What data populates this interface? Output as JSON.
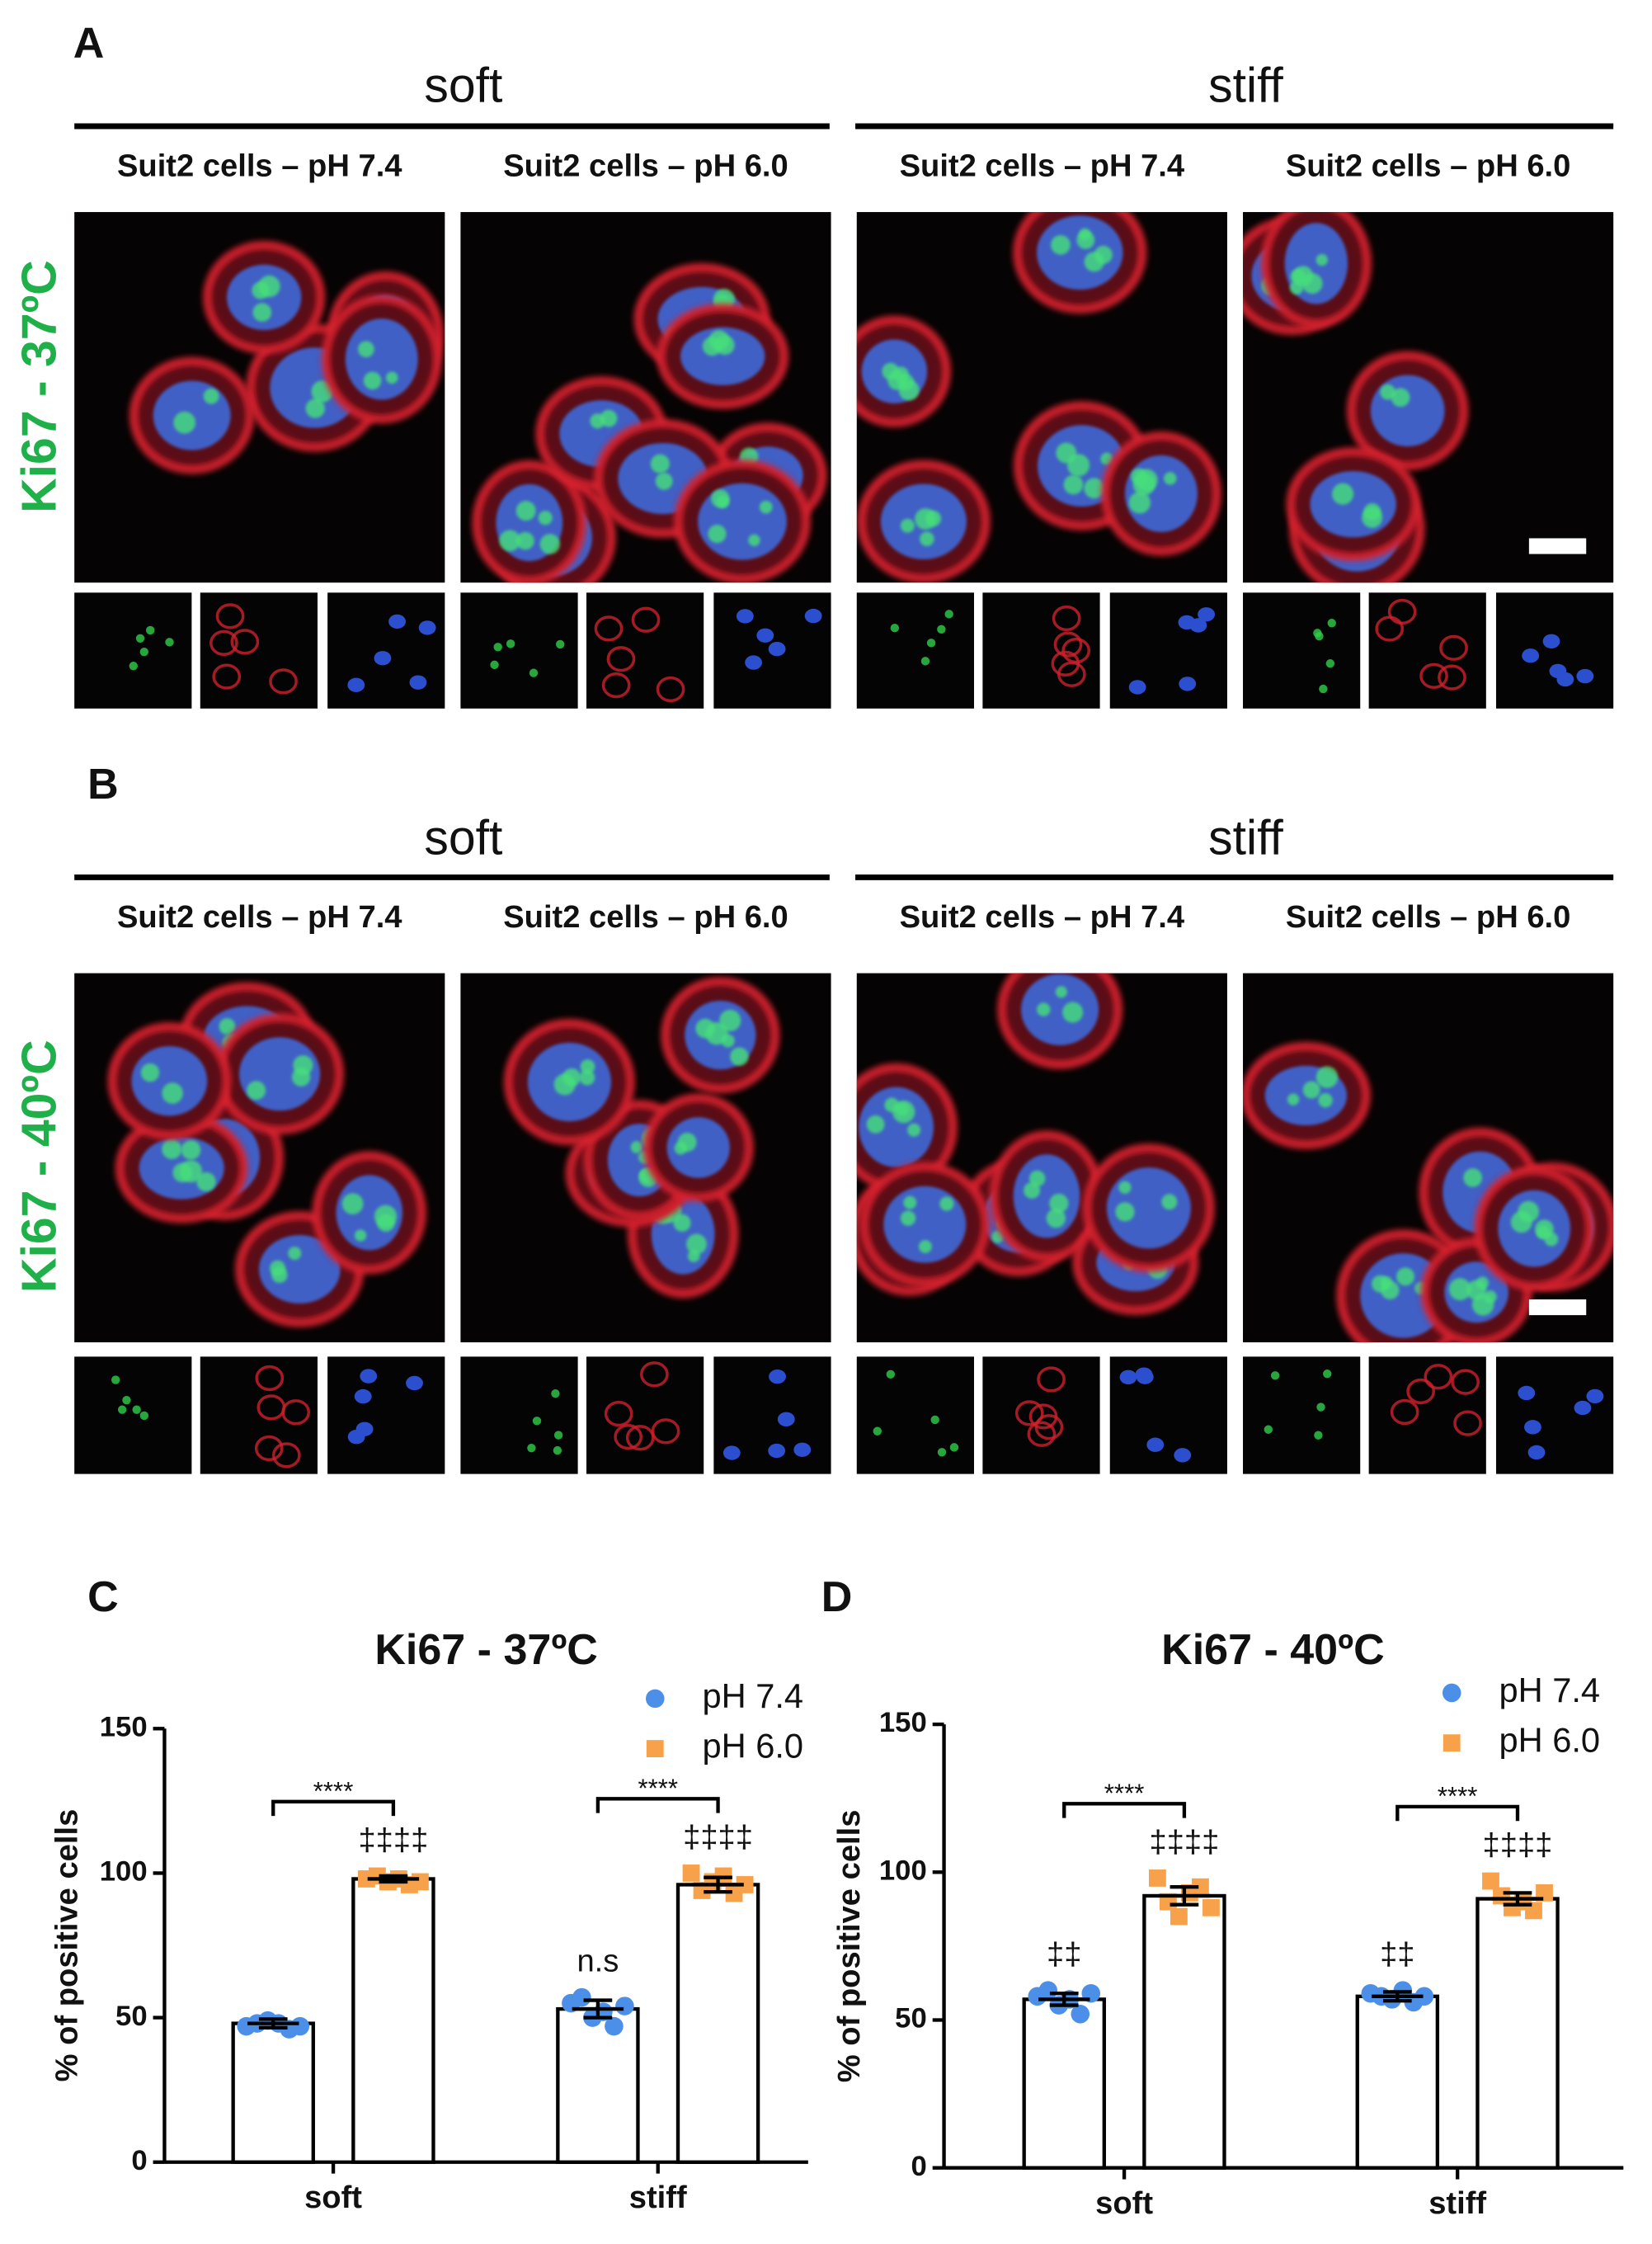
{
  "panel_a": {
    "label": "A",
    "groups": [
      "soft",
      "stiff"
    ],
    "conditions": [
      "Suit2 cells – pH 7.4",
      "Suit2 cells – pH 6.0",
      "Suit2 cells – pH 7.4",
      "Suit2 cells – pH 6.0"
    ],
    "row_label": "Ki67 - 37ºC"
  },
  "panel_b": {
    "label": "B",
    "groups": [
      "soft",
      "stiff"
    ],
    "conditions": [
      "Suit2 cells – pH 7.4",
      "Suit2 cells – pH 6.0",
      "Suit2 cells – pH 7.4",
      "Suit2 cells – pH 6.0"
    ],
    "row_label": "Ki67 - 40ºC"
  },
  "chart_data": [
    {
      "type": "bar",
      "panel_label": "C",
      "title": "Ki67 - 37ºC",
      "y_label": "% of positive cells",
      "categories": [
        "soft",
        "stiff"
      ],
      "ylim": [
        0,
        150
      ],
      "yticks": [
        0,
        50,
        100,
        150
      ],
      "bracket_labels": [
        "****",
        "****"
      ],
      "series": [
        {
          "name": "pH 7.4",
          "color": "#4b8fe8",
          "values": [
            48,
            53
          ],
          "errors": [
            1.5,
            3
          ],
          "points": [
            [
              47,
              48,
              49,
              48,
              46,
              47
            ],
            [
              55,
              57,
              50,
              52,
              47,
              54
            ]
          ],
          "markers": [
            null,
            "n.s"
          ]
        },
        {
          "name": "pH 6.0",
          "color": "#f7a24b",
          "values": [
            98,
            96
          ],
          "errors": [
            1,
            2.5
          ],
          "points": [
            [
              98,
              99,
              97,
              98,
              96,
              97
            ],
            [
              100,
              94,
              97,
              99,
              93,
              96
            ]
          ],
          "markers": [
            "‡‡‡‡",
            "‡‡‡‡"
          ]
        }
      ]
    },
    {
      "type": "bar",
      "panel_label": "D",
      "title": "Ki67 - 40ºC",
      "y_label": "% of positive cells",
      "categories": [
        "soft",
        "stiff"
      ],
      "ylim": [
        0,
        150
      ],
      "yticks": [
        0,
        50,
        100,
        150
      ],
      "bracket_labels": [
        "****",
        "****"
      ],
      "series": [
        {
          "name": "pH 7.4",
          "color": "#4b8fe8",
          "values": [
            57,
            58
          ],
          "errors": [
            2,
            1.5
          ],
          "points": [
            [
              58,
              60,
              55,
              57,
              52,
              59
            ],
            [
              59,
              58,
              57,
              60,
              56,
              58
            ]
          ],
          "markers": [
            "‡‡",
            "‡‡"
          ]
        },
        {
          "name": "pH 6.0",
          "color": "#f7a24b",
          "values": [
            92,
            91
          ],
          "errors": [
            3,
            2
          ],
          "points": [
            [
              98,
              90,
              85,
              93,
              95,
              88
            ],
            [
              97,
              92,
              88,
              90,
              87,
              93
            ]
          ],
          "markers": [
            "‡‡‡‡",
            "‡‡‡‡"
          ]
        }
      ]
    }
  ]
}
